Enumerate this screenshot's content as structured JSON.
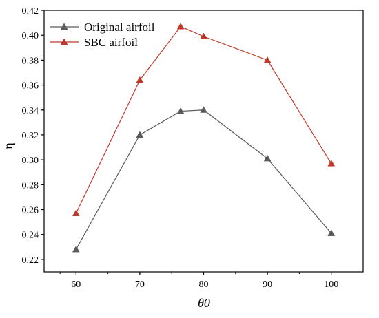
{
  "chart_data": {
    "type": "line",
    "xlabel": "θ0",
    "ylabel": "η",
    "xlim": [
      55,
      105
    ],
    "ylim": [
      0.21,
      0.42
    ],
    "x_ticks": [
      60,
      70,
      80,
      90,
      100
    ],
    "y_ticks": [
      0.22,
      0.24,
      0.26,
      0.28,
      0.3,
      0.32,
      0.34,
      0.36,
      0.38,
      0.4,
      0.42
    ],
    "x_tick_labels": [
      "60",
      "70",
      "80",
      "90",
      "100"
    ],
    "y_tick_labels": [
      "0.22",
      "0.24",
      "0.26",
      "0.28",
      "0.30",
      "0.32",
      "0.34",
      "0.36",
      "0.38",
      "0.40",
      "0.42"
    ],
    "grid": false,
    "legend_position": "top-left",
    "series": [
      {
        "name": "Original airfoil",
        "color": "#5a5a5a",
        "marker": "triangle",
        "x": [
          60,
          70,
          76.4,
          80,
          90,
          100
        ],
        "y": [
          0.228,
          0.32,
          0.339,
          0.34,
          0.301,
          0.241
        ]
      },
      {
        "name": "SBC airfoil",
        "color": "#c0392b",
        "marker": "triangle",
        "x": [
          60,
          70,
          76.4,
          80,
          90,
          100
        ],
        "y": [
          0.257,
          0.364,
          0.407,
          0.399,
          0.38,
          0.297
        ]
      }
    ]
  }
}
